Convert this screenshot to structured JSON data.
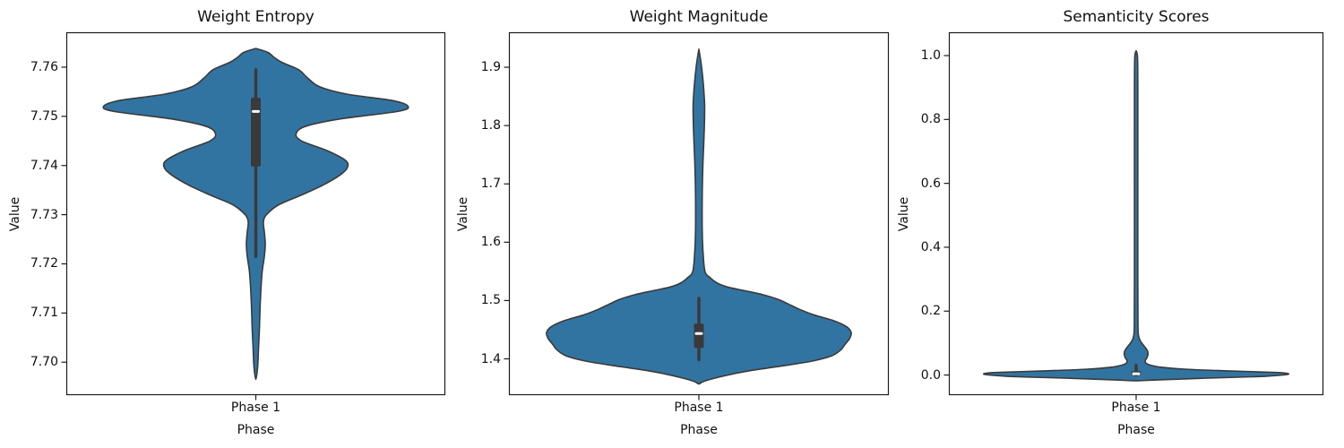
{
  "figure": {
    "background": "#ffffff",
    "violin_fill": "#3274a1",
    "violin_edge": "#3a3a3a",
    "box_color": "#3a3a3a",
    "median_color": "#ffffff",
    "axis_color": "#1c1c1c",
    "text_color": "#111111"
  },
  "chart_data": [
    {
      "type": "violin",
      "title": "Weight Entropy",
      "xlabel": "Phase",
      "ylabel": "Value",
      "category": "Phase 1",
      "ylim": [
        7.6933,
        7.7671
      ],
      "ytick_values": [
        7.7,
        7.71,
        7.72,
        7.73,
        7.74,
        7.75,
        7.76
      ],
      "ytick_labels": [
        "7.70",
        "7.71",
        "7.72",
        "7.73",
        "7.74",
        "7.75",
        "7.76"
      ],
      "box": {
        "whisker_low": 7.7215,
        "q1": 7.7398,
        "median": 7.751,
        "q3": 7.7538,
        "whisker_high": 7.7595
      },
      "profile": [
        [
          7.6965,
          0.0
        ],
        [
          7.699,
          0.012
        ],
        [
          7.703,
          0.018
        ],
        [
          7.707,
          0.024
        ],
        [
          7.711,
          0.028
        ],
        [
          7.715,
          0.034
        ],
        [
          7.7185,
          0.042
        ],
        [
          7.7215,
          0.056
        ],
        [
          7.724,
          0.062
        ],
        [
          7.7265,
          0.056
        ],
        [
          7.7285,
          0.05
        ],
        [
          7.73,
          0.07
        ],
        [
          7.732,
          0.15
        ],
        [
          7.734,
          0.3
        ],
        [
          7.736,
          0.44
        ],
        [
          7.738,
          0.55
        ],
        [
          7.7395,
          0.6
        ],
        [
          7.741,
          0.59
        ],
        [
          7.743,
          0.47
        ],
        [
          7.745,
          0.3
        ],
        [
          7.7465,
          0.265
        ],
        [
          7.748,
          0.33
        ],
        [
          7.7495,
          0.56
        ],
        [
          7.751,
          0.93
        ],
        [
          7.752,
          1.0
        ],
        [
          7.7532,
          0.9
        ],
        [
          7.7545,
          0.6
        ],
        [
          7.756,
          0.42
        ],
        [
          7.7578,
          0.34
        ],
        [
          7.7595,
          0.28
        ],
        [
          7.761,
          0.17
        ],
        [
          7.762,
          0.12
        ],
        [
          7.763,
          0.08
        ],
        [
          7.7638,
          0.0
        ]
      ]
    },
    {
      "type": "violin",
      "title": "Weight Magnitude",
      "xlabel": "Phase",
      "ylabel": "Value",
      "category": "Phase 1",
      "ylim": [
        1.3378,
        1.96
      ],
      "ytick_values": [
        1.4,
        1.5,
        1.6,
        1.7,
        1.8,
        1.9
      ],
      "ytick_labels": [
        "1.4",
        "1.5",
        "1.6",
        "1.7",
        "1.8",
        "1.9"
      ],
      "box": {
        "whisker_low": 1.3985,
        "q1": 1.4186,
        "median": 1.4435,
        "q3": 1.4606,
        "whisker_high": 1.504
      },
      "profile": [
        [
          1.357,
          0.0
        ],
        [
          1.36,
          0.02
        ],
        [
          1.363,
          0.05
        ],
        [
          1.368,
          0.12
        ],
        [
          1.374,
          0.22
        ],
        [
          1.38,
          0.34
        ],
        [
          1.388,
          0.55
        ],
        [
          1.396,
          0.74
        ],
        [
          1.405,
          0.87
        ],
        [
          1.415,
          0.93
        ],
        [
          1.425,
          0.96
        ],
        [
          1.435,
          0.99
        ],
        [
          1.445,
          1.0
        ],
        [
          1.455,
          0.97
        ],
        [
          1.465,
          0.89
        ],
        [
          1.475,
          0.76
        ],
        [
          1.485,
          0.66
        ],
        [
          1.495,
          0.58
        ],
        [
          1.502,
          0.52
        ],
        [
          1.51,
          0.42
        ],
        [
          1.517,
          0.3
        ],
        [
          1.523,
          0.19
        ],
        [
          1.53,
          0.12
        ],
        [
          1.54,
          0.07
        ],
        [
          1.55,
          0.04
        ],
        [
          1.58,
          0.028
        ],
        [
          1.62,
          0.022
        ],
        [
          1.68,
          0.022
        ],
        [
          1.73,
          0.026
        ],
        [
          1.77,
          0.032
        ],
        [
          1.8,
          0.036
        ],
        [
          1.83,
          0.038
        ],
        [
          1.85,
          0.035
        ],
        [
          1.875,
          0.028
        ],
        [
          1.9,
          0.018
        ],
        [
          1.915,
          0.01
        ],
        [
          1.931,
          0.0
        ]
      ]
    },
    {
      "type": "violin",
      "title": "Semanticity Scores",
      "xlabel": "Phase",
      "ylabel": "Value",
      "category": "Phase 1",
      "ylim": [
        -0.063,
        1.073
      ],
      "ytick_values": [
        0.0,
        0.2,
        0.4,
        0.6,
        0.8,
        1.0
      ],
      "ytick_labels": [
        "0.0",
        "0.2",
        "0.4",
        "0.6",
        "0.8",
        "1.0"
      ],
      "box": {
        "whisker_low": 0.0,
        "q1": 0.0,
        "median": 0.004,
        "q3": 0.012,
        "whisker_high": 0.03
      },
      "profile": [
        [
          -0.018,
          0.0
        ],
        [
          -0.015,
          0.15
        ],
        [
          -0.01,
          0.45
        ],
        [
          -0.005,
          0.8
        ],
        [
          0.0,
          0.96
        ],
        [
          0.004,
          1.0
        ],
        [
          0.008,
          0.92
        ],
        [
          0.013,
          0.6
        ],
        [
          0.018,
          0.33
        ],
        [
          0.024,
          0.17
        ],
        [
          0.03,
          0.1
        ],
        [
          0.037,
          0.065
        ],
        [
          0.045,
          0.06
        ],
        [
          0.055,
          0.072
        ],
        [
          0.065,
          0.078
        ],
        [
          0.075,
          0.075
        ],
        [
          0.085,
          0.062
        ],
        [
          0.095,
          0.045
        ],
        [
          0.105,
          0.03
        ],
        [
          0.115,
          0.02
        ],
        [
          0.13,
          0.014
        ],
        [
          0.16,
          0.012
        ],
        [
          0.3,
          0.011
        ],
        [
          0.6,
          0.011
        ],
        [
          0.9,
          0.011
        ],
        [
          0.98,
          0.01
        ],
        [
          1.005,
          0.007
        ],
        [
          1.015,
          0.0
        ]
      ]
    }
  ]
}
